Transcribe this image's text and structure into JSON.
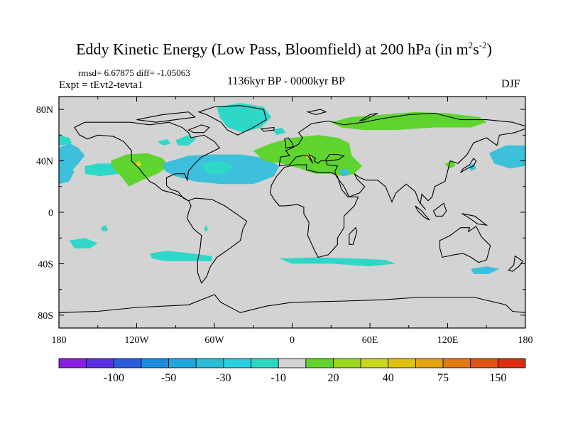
{
  "title": {
    "text": "Eddy Kinetic Energy (Low Pass, Bloomfield) at 200 hPa (in m",
    "sup1": "2",
    "mid": "s",
    "sup2": "-2",
    "close": ")"
  },
  "stats": "rmsd= 6.67875 diff= -1.05063",
  "experiment": "Expt = tEvt2-tevta1",
  "period": "1136kyr BP - 0000kyr BP",
  "season": "DJF",
  "colors": {
    "land_bg": "#d3d3d3",
    "positive_green": "#5fd42f",
    "positive_yellow": "#d8d81c",
    "negative_cyan": "#2ed8c9",
    "negative_sky": "#3cc0dc"
  },
  "chart_data": {
    "type": "heatmap",
    "projection": "cylindrical equidistant",
    "xlim": [
      -180,
      180
    ],
    "ylim": [
      -90,
      90
    ],
    "x_ticks": [
      {
        "value": -180,
        "label": "180"
      },
      {
        "value": -120,
        "label": "120W"
      },
      {
        "value": -60,
        "label": "60W"
      },
      {
        "value": 0,
        "label": "0"
      },
      {
        "value": 60,
        "label": "60E"
      },
      {
        "value": 120,
        "label": "120E"
      },
      {
        "value": 180,
        "label": "180"
      }
    ],
    "y_ticks": [
      {
        "value": 80,
        "label": "80N"
      },
      {
        "value": 40,
        "label": "40N"
      },
      {
        "value": 0,
        "label": "0"
      },
      {
        "value": -40,
        "label": "40S"
      },
      {
        "value": -80,
        "label": "80S"
      }
    ],
    "colorbar": {
      "levels": [
        -150,
        -100,
        -75,
        -50,
        -40,
        -30,
        -20,
        -10,
        10,
        20,
        30,
        40,
        50,
        75,
        100,
        150
      ],
      "labels": [
        "-100",
        "-50",
        "-30",
        "-10",
        "20",
        "40",
        "75",
        "150"
      ],
      "colors": [
        "#8a1ee0",
        "#5a30e4",
        "#2a5cdc",
        "#1c8ce0",
        "#1ca8dc",
        "#2abcd8",
        "#27cfe0",
        "#2ed8c0",
        "#d3d3d3",
        "#5fd42f",
        "#9ad81c",
        "#c8d81c",
        "#e0c20e",
        "#e4a410",
        "#e07a14",
        "#e05418",
        "#dc2c10"
      ]
    },
    "anomaly_regions": [
      {
        "name": "N Pacific east",
        "sign": "negative",
        "class": "-20 to -10",
        "lon": [
          -180,
          -160
        ],
        "lat": [
          22,
          60
        ]
      },
      {
        "name": "NE Pacific",
        "sign": "negative",
        "class": "-20 to -10",
        "lon": [
          -160,
          -120
        ],
        "lat": [
          22,
          40
        ]
      },
      {
        "name": "W US",
        "sign": "positive",
        "class": "10 to 30",
        "lon": [
          -140,
          -95
        ],
        "lat": [
          20,
          45
        ]
      },
      {
        "name": "Greenland",
        "sign": "negative",
        "class": "-20 to -10",
        "lon": [
          -60,
          -20
        ],
        "lat": [
          62,
          84
        ]
      },
      {
        "name": "N Atlantic",
        "sign": "negative",
        "class": "-30 to -10",
        "lon": [
          -100,
          -10
        ],
        "lat": [
          20,
          45
        ]
      },
      {
        "name": "Europe N Africa",
        "sign": "positive",
        "class": "10 to 20",
        "lon": [
          -30,
          55
        ],
        "lat": [
          25,
          60
        ]
      },
      {
        "name": "Siberia",
        "sign": "positive",
        "class": "10 to 20",
        "lon": [
          30,
          150
        ],
        "lat": [
          62,
          78
        ]
      },
      {
        "name": "Mid East",
        "sign": "negative",
        "class": "-20 to -10",
        "lon": [
          35,
          45
        ],
        "lat": [
          28,
          35
        ]
      },
      {
        "name": "NW Pacific",
        "sign": "negative",
        "class": "-20 to -10",
        "lon": [
          145,
          180
        ],
        "lat": [
          32,
          52
        ]
      },
      {
        "name": "S Pacific",
        "sign": "negative",
        "class": "-20 to -10",
        "lon": [
          -170,
          -140
        ],
        "lat": [
          -30,
          -20
        ]
      },
      {
        "name": "S Atlantic",
        "sign": "negative",
        "class": "-20 to -10",
        "lon": [
          -110,
          -60
        ],
        "lat": [
          -40,
          -30
        ]
      },
      {
        "name": "S Indian",
        "sign": "negative",
        "class": "-20 to -10",
        "lon": [
          -10,
          80
        ],
        "lat": [
          -40,
          -35
        ]
      },
      {
        "name": "Australia S",
        "sign": "negative",
        "class": "-20 to -10",
        "lon": [
          140,
          160
        ],
        "lat": [
          -50,
          -42
        ]
      }
    ]
  }
}
